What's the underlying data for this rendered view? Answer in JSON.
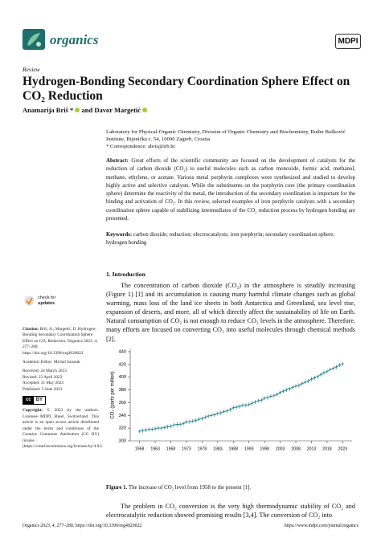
{
  "header": {
    "journal": "organics",
    "publisher": "MDPI"
  },
  "article_type": "Review",
  "title": "Hydrogen-Bonding Secondary Coordination Sphere Effect on CO₂ Reduction",
  "authors": {
    "first": "Anamarija Briš *",
    "connector": "and",
    "second": "Davor Margetić"
  },
  "affiliation": {
    "address": "Laboratory for Physical-Organic Chemistry, Division of Organic Chemistry and Biochemistry, Ruđer Bošković Institute, Bijenička c. 54, 10000 Zagreb, Croatia",
    "correspondence": "* Correspondence: abris@irb.hr"
  },
  "abstract": {
    "label": "Abstract:",
    "text": "Great efforts of the scientific community are focused on the development of catalysts for the reduction of carbon dioxide (CO₂) to useful molecules such as carbon monoxide, formic acid, methanol, methane, ethylene, or acetate. Various metal porphyrin complexes were synthesized and studied to develop highly active and selective catalysts. While the substituents on the porphyrin core (the primary coordination sphere) determine the reactivity of the metal, the introduction of the secondary coordination is important for the binding and activation of CO₂. In this review, selected examples of iron porphyrin catalysts with a secondary coordination sphere capable of stabilizing intermediates of the CO₂ reduction process by hydrogen bonding are presented."
  },
  "keywords": {
    "label": "Keywords:",
    "text": "carbon dioxide; reduction; electrocatalysts; iron porphyrin; secondary coordination sphere; hydrogen bonding"
  },
  "sidebar": {
    "check_updates": [
      "check for",
      "updates"
    ],
    "citation": {
      "label": "Citation:",
      "text": "Briš, A.; Margetić, D. Hydrogen-Bonding Secondary Coordination Sphere Effect on CO₂ Reduction. Organics 2023, 4, 277–288. https://doi.org/10.3390/org4020022"
    },
    "editor": "Academic Editor: Michal Szostak",
    "dates": [
      "Received: 24 March 2023",
      "Revised: 23 April 2023",
      "Accepted: 31 May 2023",
      "Published: 5 June 2023"
    ],
    "license_badge": [
      "cc",
      "BY"
    ],
    "copyright": {
      "label": "Copyright:",
      "text": "© 2023 by the authors. Licensee MDPI, Basel, Switzerland. This article is an open access article distributed under the terms and conditions of the Creative Commons Attribution (CC BY) license (https://creativecommons.org/licenses/by/4.0/)."
    }
  },
  "section_heading": "1. Introduction",
  "intro_paragraph": "The concentration of carbon dioxide (CO₂) in the atmosphere is steadily increasing (Figure 1) [1] and its accumulation is causing many harmful climate changes such as global warming, mass loss of the land ice sheets in both Antarctica and Greenland, sea level rise, expansion of deserts, and more, all of which directly affect the sustainability of life on Earth. Natural consumption of CO₂ is not enough to reduce CO₂ levels in the atmosphere. Therefore, many efforts are focused on converting CO₂ into useful molecules through chemical methods [2].",
  "chart_data": {
    "type": "line",
    "y_label": "CO₂ (parts per million)",
    "color": "#1f7f8c",
    "x": [
      1958,
      1959,
      1960,
      1961,
      1962,
      1963,
      1964,
      1965,
      1966,
      1967,
      1968,
      1969,
      1970,
      1971,
      1972,
      1973,
      1974,
      1975,
      1976,
      1977,
      1978,
      1979,
      1980,
      1981,
      1982,
      1983,
      1984,
      1985,
      1986,
      1987,
      1988,
      1989,
      1990,
      1991,
      1992,
      1993,
      1994,
      1995,
      1996,
      1997,
      1998,
      1999,
      2000,
      2001,
      2002,
      2003,
      2004,
      2005,
      2006,
      2007,
      2008,
      2009,
      2010,
      2011,
      2012,
      2013,
      2014,
      2015,
      2016,
      2017,
      2018,
      2019,
      2020,
      2021,
      2022,
      2023
    ],
    "values": [
      315,
      316,
      317,
      318,
      318,
      319,
      320,
      320,
      321,
      322,
      323,
      325,
      326,
      326,
      327,
      330,
      330,
      331,
      332,
      334,
      335,
      337,
      339,
      340,
      341,
      343,
      344,
      346,
      347,
      349,
      352,
      353,
      354,
      356,
      356,
      357,
      359,
      361,
      363,
      364,
      367,
      368,
      370,
      371,
      373,
      376,
      378,
      380,
      382,
      384,
      386,
      387,
      390,
      392,
      394,
      397,
      399,
      401,
      404,
      407,
      409,
      412,
      414,
      416,
      419,
      421
    ],
    "xlim": [
      1955,
      2026
    ],
    "ylim": [
      300,
      440
    ],
    "xticks": [
      1958,
      1963,
      1968,
      1973,
      1978,
      1983,
      1988,
      1993,
      1998,
      2003,
      2008,
      2013,
      2018,
      2023
    ],
    "yticks": [
      300,
      320,
      340,
      360,
      380,
      400,
      420,
      440
    ]
  },
  "figure_caption": {
    "label": "Figure 1.",
    "text": "The increase of CO₂ level from 1958 to the present [1]."
  },
  "next_paragraph": "The problem in CO₂ conversion is the very high thermodynamic stability of CO₂ and electrocatalytic reduction showed promising results [3,4]. The conversion of CO₂ into",
  "footer": {
    "citation": "Organics 2023, 4, 277–288. https://doi.org/10.3390/org4020022",
    "url": "https://www.mdpi.com/journal/organics"
  }
}
